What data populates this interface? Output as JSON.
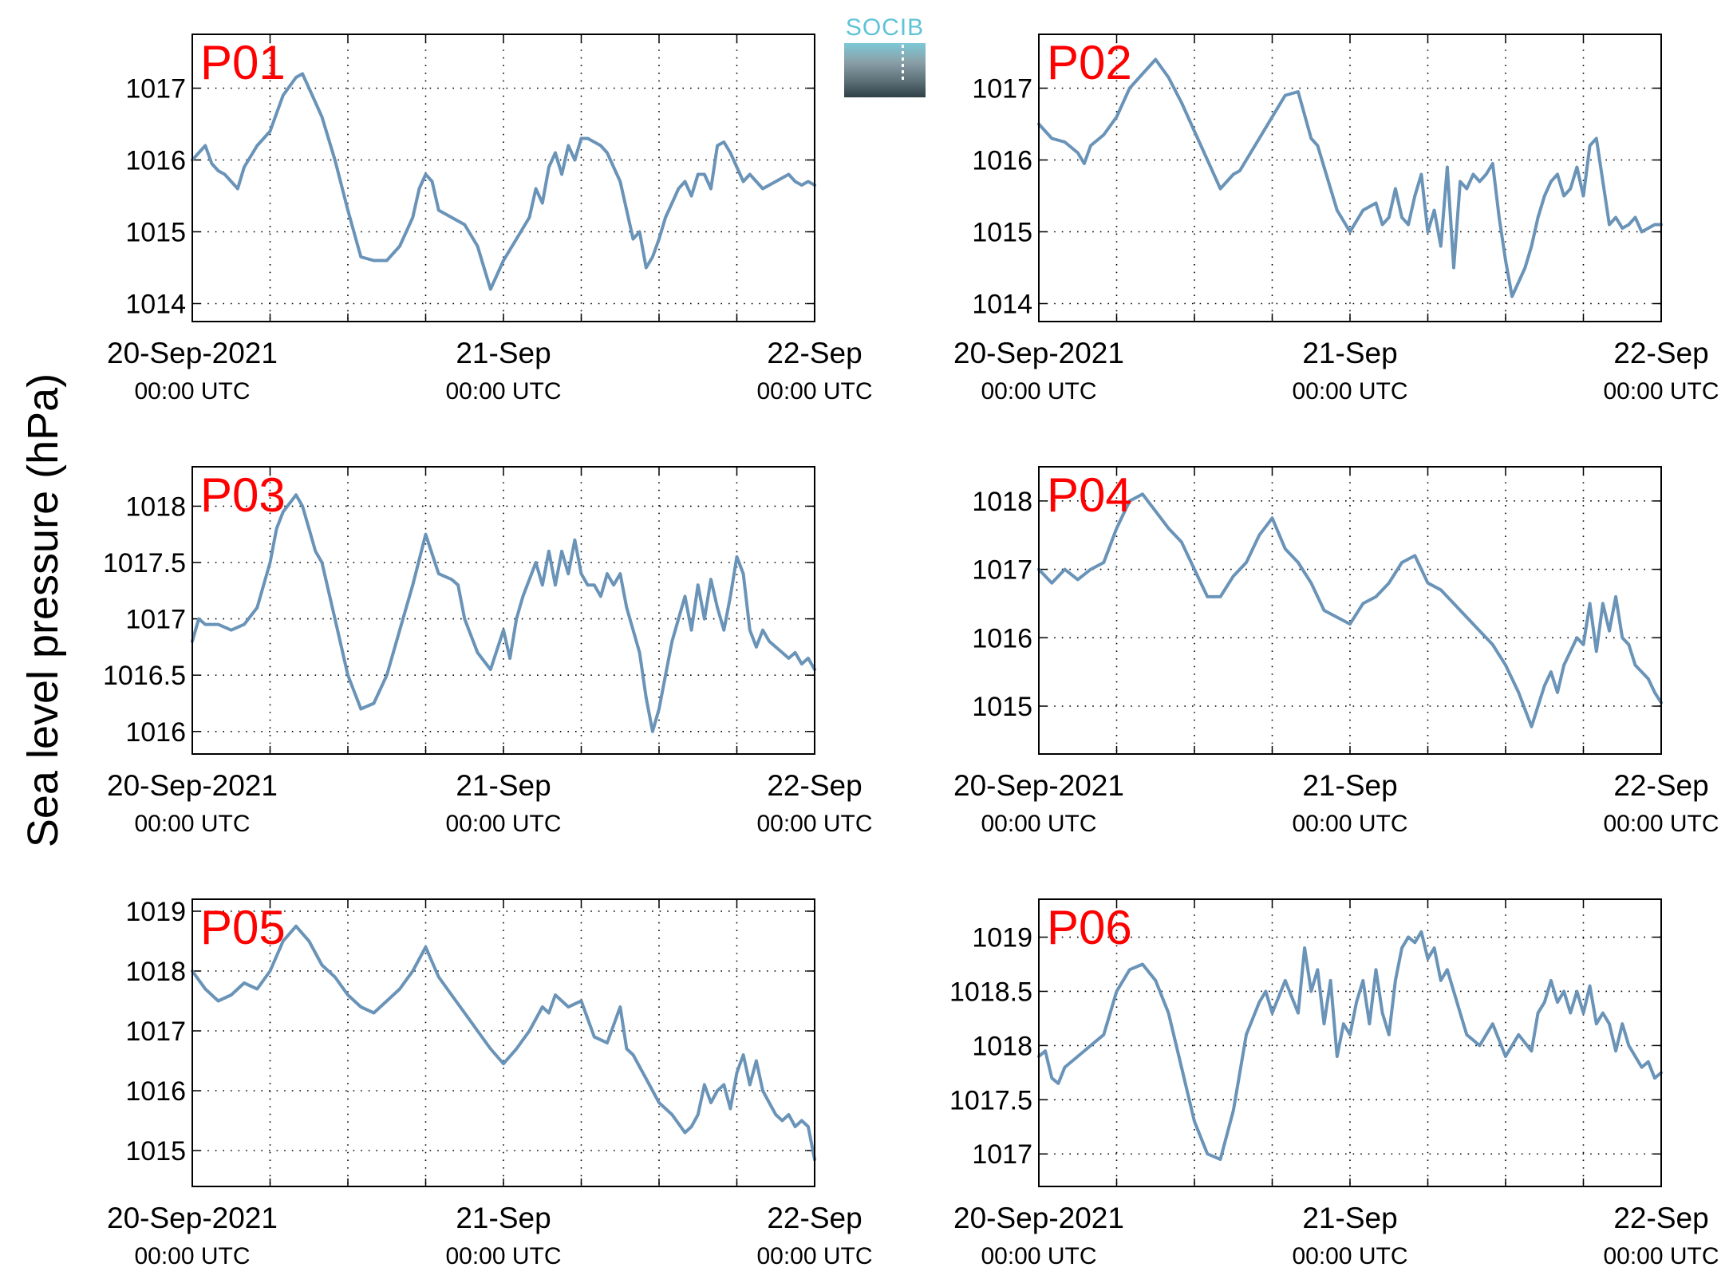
{
  "figure": {
    "ylabel": "Sea level pressure (hPa)",
    "logo_text": "SOCIB",
    "line_color": "#6a93b8",
    "label_color": "#ff0000"
  },
  "chart_data": [
    {
      "type": "line",
      "label": "P01",
      "xlim": [
        0,
        48
      ],
      "ylim": [
        1013.75,
        1017.75
      ],
      "yticks": [
        1014,
        1015,
        1016,
        1017
      ],
      "ytick_labels": [
        "1014",
        "1015",
        "1016",
        "1017"
      ],
      "xticks": [
        0,
        24,
        48
      ],
      "xtick_labels": [
        [
          "20-Sep-2021",
          "00:00 UTC"
        ],
        [
          "21-Sep",
          "00:00 UTC"
        ],
        [
          "22-Sep",
          "00:00 UTC"
        ]
      ],
      "x": [
        0,
        1,
        1.5,
        2,
        2.5,
        3,
        3.5,
        4,
        5,
        6,
        7,
        8,
        8.5,
        9,
        10,
        11,
        12,
        13,
        14,
        15,
        16,
        17,
        17.5,
        18,
        18.5,
        19,
        20,
        21,
        22,
        22.5,
        23,
        24,
        25,
        26,
        26.5,
        27,
        27.5,
        28,
        28.5,
        29,
        29.5,
        30,
        30.5,
        31,
        31.5,
        32,
        32.5,
        33,
        33.5,
        34,
        34.5,
        35,
        35.5,
        36,
        36.5,
        37,
        37.5,
        38,
        38.5,
        39,
        39.5,
        40,
        40.5,
        41,
        41.5,
        42,
        42.5,
        43,
        43.5,
        44,
        44.5,
        45,
        45.5,
        46,
        46.5,
        47,
        47.5,
        48
      ],
      "y": [
        1016.0,
        1016.2,
        1015.95,
        1015.85,
        1015.8,
        1015.7,
        1015.6,
        1015.9,
        1016.2,
        1016.4,
        1016.9,
        1017.15,
        1017.2,
        1017.0,
        1016.6,
        1016.0,
        1015.3,
        1014.65,
        1014.6,
        1014.6,
        1014.8,
        1015.2,
        1015.6,
        1015.8,
        1015.7,
        1015.3,
        1015.2,
        1015.1,
        1014.8,
        1014.5,
        1014.2,
        1014.6,
        1014.9,
        1015.2,
        1015.6,
        1015.4,
        1015.9,
        1016.1,
        1015.8,
        1016.2,
        1016.0,
        1016.3,
        1016.3,
        1016.25,
        1016.2,
        1016.1,
        1015.9,
        1015.7,
        1015.3,
        1014.9,
        1015.0,
        1014.5,
        1014.65,
        1014.9,
        1015.2,
        1015.4,
        1015.6,
        1015.7,
        1015.5,
        1015.8,
        1015.8,
        1015.6,
        1016.2,
        1016.25,
        1016.1,
        1015.9,
        1015.7,
        1015.8,
        1015.7,
        1015.6,
        1015.65,
        1015.7,
        1015.75,
        1015.8,
        1015.7,
        1015.65,
        1015.7,
        1015.65
      ]
    },
    {
      "type": "line",
      "label": "P02",
      "xlim": [
        0,
        48
      ],
      "ylim": [
        1013.75,
        1017.75
      ],
      "yticks": [
        1014,
        1015,
        1016,
        1017
      ],
      "ytick_labels": [
        "1014",
        "1015",
        "1016",
        "1017"
      ],
      "xticks": [
        0,
        24,
        48
      ],
      "xtick_labels": [
        [
          "20-Sep-2021",
          "00:00 UTC"
        ],
        [
          "21-Sep",
          "00:00 UTC"
        ],
        [
          "22-Sep",
          "00:00 UTC"
        ]
      ],
      "x": [
        0,
        1,
        2,
        3,
        3.5,
        4,
        5,
        6,
        7,
        8,
        9,
        10,
        11,
        12,
        13,
        14,
        15,
        15.5,
        16,
        17,
        18,
        19,
        20,
        21,
        21.5,
        22,
        23,
        24,
        25,
        26,
        26.5,
        27,
        27.5,
        28,
        28.5,
        29,
        29.5,
        30,
        30.5,
        31,
        31.5,
        32,
        32.5,
        33,
        33.5,
        34,
        34.5,
        35,
        35.5,
        36,
        36.5,
        37,
        37.5,
        38,
        38.5,
        39,
        39.5,
        40,
        40.5,
        41,
        41.5,
        42,
        42.5,
        43,
        43.5,
        44,
        44.5,
        45,
        45.5,
        46,
        46.5,
        47,
        47.5,
        48
      ],
      "y": [
        1016.5,
        1016.3,
        1016.25,
        1016.1,
        1015.95,
        1016.2,
        1016.35,
        1016.6,
        1017.0,
        1017.2,
        1017.4,
        1017.15,
        1016.8,
        1016.4,
        1016.0,
        1015.6,
        1015.8,
        1015.85,
        1016.0,
        1016.3,
        1016.6,
        1016.9,
        1016.95,
        1016.3,
        1016.2,
        1015.9,
        1015.3,
        1015.0,
        1015.3,
        1015.4,
        1015.1,
        1015.2,
        1015.6,
        1015.2,
        1015.1,
        1015.5,
        1015.8,
        1015.0,
        1015.3,
        1014.8,
        1015.9,
        1014.5,
        1015.7,
        1015.6,
        1015.8,
        1015.7,
        1015.8,
        1015.95,
        1015.2,
        1014.6,
        1014.1,
        1014.3,
        1014.5,
        1014.8,
        1015.2,
        1015.5,
        1015.7,
        1015.8,
        1015.5,
        1015.6,
        1015.9,
        1015.5,
        1016.2,
        1016.3,
        1015.7,
        1015.1,
        1015.2,
        1015.05,
        1015.1,
        1015.2,
        1015.0,
        1015.05,
        1015.1,
        1015.1
      ]
    },
    {
      "type": "line",
      "label": "P03",
      "xlim": [
        0,
        48
      ],
      "ylim": [
        1015.8,
        1018.35
      ],
      "yticks": [
        1016,
        1016.5,
        1017,
        1017.5,
        1018
      ],
      "ytick_labels": [
        "1016",
        "1016.5",
        "1017",
        "1017.5",
        "1018"
      ],
      "xticks": [
        0,
        24,
        48
      ],
      "xtick_labels": [
        [
          "20-Sep-2021",
          "00:00 UTC"
        ],
        [
          "21-Sep",
          "00:00 UTC"
        ],
        [
          "22-Sep",
          "00:00 UTC"
        ]
      ],
      "x": [
        0,
        0.5,
        1,
        2,
        3,
        4,
        5,
        6,
        6.5,
        7,
        8,
        8.5,
        9,
        9.5,
        10,
        11,
        12,
        13,
        14,
        15,
        16,
        17,
        18,
        19,
        20,
        20.5,
        21,
        22,
        23,
        24,
        24.5,
        25,
        25.5,
        26,
        26.5,
        27,
        27.5,
        28,
        28.5,
        29,
        29.5,
        30,
        30.5,
        31,
        31.5,
        32,
        32.5,
        33,
        33.5,
        34,
        34.5,
        35,
        35.5,
        36,
        36.5,
        37,
        37.5,
        38,
        38.5,
        39,
        39.5,
        40,
        40.5,
        41,
        41.5,
        42,
        42.5,
        43,
        43.5,
        44,
        44.5,
        45,
        45.5,
        46,
        46.5,
        47,
        47.5,
        48
      ],
      "y": [
        1016.8,
        1017.0,
        1016.95,
        1016.95,
        1016.9,
        1016.95,
        1017.1,
        1017.5,
        1017.8,
        1017.95,
        1018.1,
        1018.0,
        1017.8,
        1017.6,
        1017.5,
        1017.0,
        1016.5,
        1016.2,
        1016.25,
        1016.5,
        1016.9,
        1017.3,
        1017.75,
        1017.4,
        1017.35,
        1017.3,
        1017.0,
        1016.7,
        1016.55,
        1016.9,
        1016.65,
        1017.0,
        1017.2,
        1017.35,
        1017.5,
        1017.3,
        1017.6,
        1017.3,
        1017.6,
        1017.4,
        1017.7,
        1017.4,
        1017.3,
        1017.3,
        1017.2,
        1017.4,
        1017.3,
        1017.4,
        1017.1,
        1016.9,
        1016.7,
        1016.3,
        1016.0,
        1016.2,
        1016.5,
        1016.8,
        1017.0,
        1017.2,
        1016.9,
        1017.3,
        1017.0,
        1017.35,
        1017.1,
        1016.9,
        1017.2,
        1017.55,
        1017.4,
        1016.9,
        1016.75,
        1016.9,
        1016.8,
        1016.75,
        1016.7,
        1016.65,
        1016.7,
        1016.6,
        1016.65,
        1016.55
      ]
    },
    {
      "type": "line",
      "label": "P04",
      "xlim": [
        0,
        48
      ],
      "ylim": [
        1014.3,
        1018.5
      ],
      "yticks": [
        1015,
        1016,
        1017,
        1018
      ],
      "ytick_labels": [
        "1015",
        "1016",
        "1017",
        "1018"
      ],
      "xticks": [
        0,
        24,
        48
      ],
      "xtick_labels": [
        [
          "20-Sep-2021",
          "00:00 UTC"
        ],
        [
          "21-Sep",
          "00:00 UTC"
        ],
        [
          "22-Sep",
          "00:00 UTC"
        ]
      ],
      "x": [
        0,
        1,
        2,
        3,
        4,
        5,
        6,
        7,
        8,
        9,
        10,
        11,
        12,
        13,
        14,
        15,
        16,
        17,
        18,
        19,
        20,
        21,
        22,
        23,
        24,
        25,
        26,
        27,
        28,
        29,
        30,
        31,
        32,
        33,
        34,
        35,
        36,
        37,
        38,
        38.5,
        39,
        39.5,
        40,
        40.5,
        41,
        41.5,
        42,
        42.5,
        43,
        43.5,
        44,
        44.5,
        45,
        45.5,
        46,
        46.5,
        47,
        47.5,
        48
      ],
      "y": [
        1017.0,
        1016.8,
        1017.0,
        1016.85,
        1017.0,
        1017.1,
        1017.6,
        1018.0,
        1018.1,
        1017.85,
        1017.6,
        1017.4,
        1017.0,
        1016.6,
        1016.6,
        1016.9,
        1017.1,
        1017.5,
        1017.75,
        1017.3,
        1017.1,
        1016.8,
        1016.4,
        1016.3,
        1016.2,
        1016.5,
        1016.6,
        1016.8,
        1017.1,
        1017.2,
        1016.8,
        1016.7,
        1016.5,
        1016.3,
        1016.1,
        1015.9,
        1015.6,
        1015.2,
        1014.7,
        1015.0,
        1015.3,
        1015.5,
        1015.2,
        1015.6,
        1015.8,
        1016.0,
        1015.9,
        1016.5,
        1015.8,
        1016.5,
        1016.1,
        1016.6,
        1016.0,
        1015.9,
        1015.6,
        1015.5,
        1015.4,
        1015.2,
        1015.05
      ]
    },
    {
      "type": "line",
      "label": "P05",
      "xlim": [
        0,
        48
      ],
      "ylim": [
        1014.4,
        1019.2
      ],
      "yticks": [
        1015,
        1016,
        1017,
        1018,
        1019
      ],
      "ytick_labels": [
        "1015",
        "1016",
        "1017",
        "1018",
        "1019"
      ],
      "xticks": [
        0,
        24,
        48
      ],
      "xtick_labels": [
        [
          "20-Sep-2021",
          "00:00 UTC"
        ],
        [
          "21-Sep",
          "00:00 UTC"
        ],
        [
          "22-Sep",
          "00:00 UTC"
        ]
      ],
      "x": [
        0,
        1,
        2,
        3,
        4,
        5,
        6,
        7,
        8,
        9,
        9.5,
        10,
        11,
        12,
        13,
        14,
        15,
        16,
        17,
        18,
        19,
        20,
        21,
        22,
        23,
        24,
        25,
        26,
        27,
        27.5,
        28,
        29,
        30,
        31,
        32,
        33,
        33.5,
        34,
        35,
        36,
        37,
        38,
        38.5,
        39,
        39.5,
        40,
        40.5,
        41,
        41.5,
        42,
        42.5,
        43,
        43.5,
        44,
        44.5,
        45,
        45.5,
        46,
        46.5,
        47,
        47.5,
        48
      ],
      "y": [
        1018.0,
        1017.7,
        1017.5,
        1017.6,
        1017.8,
        1017.7,
        1018.0,
        1018.5,
        1018.75,
        1018.5,
        1018.3,
        1018.1,
        1017.9,
        1017.6,
        1017.4,
        1017.3,
        1017.5,
        1017.7,
        1018.0,
        1018.4,
        1017.9,
        1017.6,
        1017.3,
        1017.0,
        1016.7,
        1016.45,
        1016.7,
        1017.0,
        1017.4,
        1017.3,
        1017.6,
        1017.4,
        1017.5,
        1016.9,
        1016.8,
        1017.4,
        1016.7,
        1016.6,
        1016.2,
        1015.8,
        1015.6,
        1015.3,
        1015.4,
        1015.6,
        1016.1,
        1015.8,
        1016.0,
        1016.1,
        1015.7,
        1016.3,
        1016.6,
        1016.1,
        1016.5,
        1016.0,
        1015.8,
        1015.6,
        1015.5,
        1015.6,
        1015.4,
        1015.5,
        1015.4,
        1014.85
      ]
    },
    {
      "type": "line",
      "label": "P06",
      "xlim": [
        0,
        48
      ],
      "ylim": [
        1016.7,
        1019.35
      ],
      "yticks": [
        1017,
        1017.5,
        1018,
        1018.5,
        1019
      ],
      "ytick_labels": [
        "1017",
        "1017.5",
        "1018",
        "1018.5",
        "1019"
      ],
      "xticks": [
        0,
        24,
        48
      ],
      "xtick_labels": [
        [
          "20-Sep-2021",
          "00:00 UTC"
        ],
        [
          "21-Sep",
          "00:00 UTC"
        ],
        [
          "22-Sep",
          "00:00 UTC"
        ]
      ],
      "x": [
        0,
        0.5,
        1,
        1.5,
        2,
        3,
        4,
        5,
        6,
        7,
        8,
        9,
        10,
        11,
        12,
        13,
        14,
        15,
        16,
        17,
        17.5,
        18,
        19,
        20,
        20.5,
        21,
        21.5,
        22,
        22.5,
        23,
        23.5,
        24,
        24.5,
        25,
        25.5,
        26,
        26.5,
        27,
        27.5,
        28,
        28.5,
        29,
        29.5,
        30,
        30.5,
        31,
        31.5,
        32,
        32.5,
        33,
        34,
        35,
        36,
        37,
        38,
        38.5,
        39,
        39.5,
        40,
        40.5,
        41,
        41.5,
        42,
        42.5,
        43,
        43.5,
        44,
        44.5,
        45,
        45.5,
        46,
        46.5,
        47,
        47.5,
        48
      ],
      "y": [
        1017.9,
        1017.95,
        1017.7,
        1017.65,
        1017.8,
        1017.9,
        1018.0,
        1018.1,
        1018.5,
        1018.7,
        1018.75,
        1018.6,
        1018.3,
        1017.8,
        1017.3,
        1017.0,
        1016.95,
        1017.4,
        1018.1,
        1018.4,
        1018.5,
        1018.3,
        1018.6,
        1018.3,
        1018.9,
        1018.5,
        1018.7,
        1018.2,
        1018.6,
        1017.9,
        1018.2,
        1018.1,
        1018.4,
        1018.6,
        1018.2,
        1018.7,
        1018.3,
        1018.1,
        1018.6,
        1018.9,
        1019.0,
        1018.95,
        1019.05,
        1018.8,
        1018.9,
        1018.6,
        1018.7,
        1018.5,
        1018.3,
        1018.1,
        1018.0,
        1018.2,
        1017.9,
        1018.1,
        1017.95,
        1018.3,
        1018.4,
        1018.6,
        1018.4,
        1018.5,
        1018.3,
        1018.5,
        1018.3,
        1018.55,
        1018.2,
        1018.3,
        1018.2,
        1017.95,
        1018.2,
        1018.0,
        1017.9,
        1017.8,
        1017.85,
        1017.7,
        1017.75
      ]
    }
  ]
}
